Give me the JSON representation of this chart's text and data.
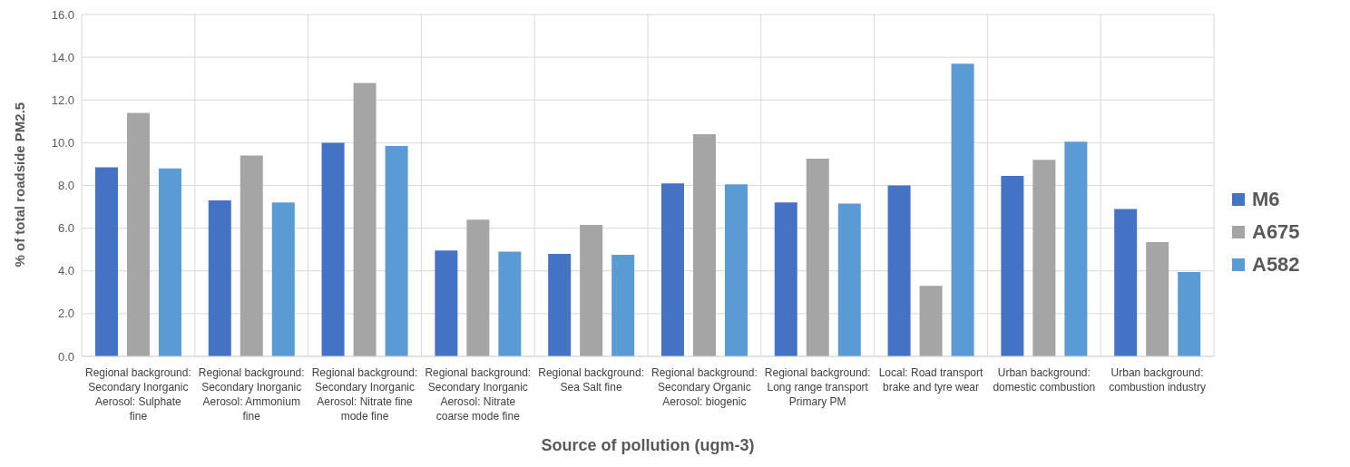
{
  "chart_data": {
    "type": "bar",
    "xlabel": "Source of pollution (ugm-3)",
    "ylabel": "% of total roadside PM2.5",
    "categories": [
      "Regional background: Secondary Inorganic Aerosol: Sulphate fine",
      "Regional background: Secondary Inorganic Aerosol: Ammonium fine",
      "Regional background: Secondary Inorganic Aerosol: Nitrate fine mode fine",
      "Regional background: Secondary Inorganic Aerosol: Nitrate coarse mode fine",
      "Regional background: Sea Salt fine",
      "Regional background: Secondary Organic Aerosol: biogenic",
      "Regional background: Long range transport Primary PM",
      "Local: Road transport brake and tyre wear",
      "Urban background: domestic combustion",
      "Urban background: combustion industry"
    ],
    "series": [
      {
        "name": "M6",
        "color": "#4472c4",
        "values": [
          8.85,
          7.3,
          10.0,
          4.95,
          4.8,
          8.1,
          7.2,
          8.0,
          8.45,
          6.9
        ]
      },
      {
        "name": "A675",
        "color": "#a5a5a5",
        "values": [
          11.4,
          9.4,
          12.8,
          6.4,
          6.15,
          10.4,
          9.25,
          3.3,
          9.2,
          5.35
        ]
      },
      {
        "name": "A582",
        "color": "#5b9bd5",
        "values": [
          8.8,
          7.2,
          9.85,
          4.9,
          4.75,
          8.05,
          7.15,
          13.7,
          10.05,
          3.95
        ]
      }
    ],
    "ylim": [
      0,
      16
    ],
    "yticks": [
      {
        "value": 0,
        "label": "0.0"
      },
      {
        "value": 2,
        "label": "2.0"
      },
      {
        "value": 4,
        "label": "4.0"
      },
      {
        "value": 6,
        "label": "6.0"
      },
      {
        "value": 8,
        "label": "8.0"
      },
      {
        "value": 10,
        "label": "10.0"
      },
      {
        "value": 12,
        "label": "12.0"
      },
      {
        "value": 14,
        "label": "14.0"
      },
      {
        "value": 16,
        "label": "16.0"
      }
    ],
    "grid": true,
    "legend": "right"
  }
}
